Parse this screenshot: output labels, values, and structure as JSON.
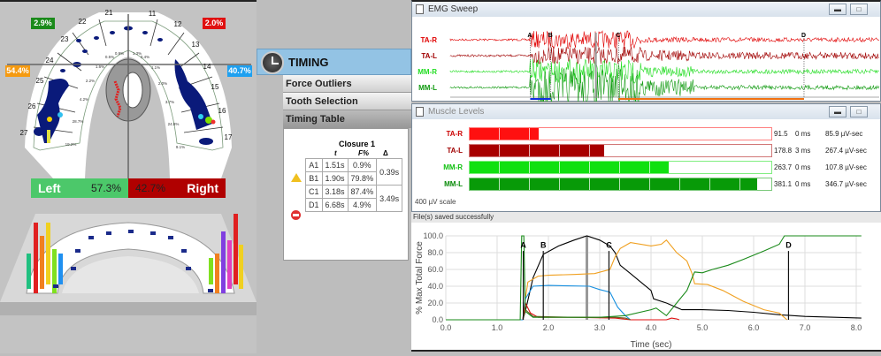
{
  "occlusion": {
    "quadrants": [
      {
        "value": "2.9%",
        "color": "#1a8a1a"
      },
      {
        "value": "2.0%",
        "color": "#e01010"
      },
      {
        "value": "54.4%",
        "color": "#f59a10"
      },
      {
        "value": "40.7%",
        "color": "#1ea0f0"
      }
    ],
    "teeth": [
      "21",
      "11",
      "22",
      "12",
      "23",
      "13",
      "24",
      "14",
      "25",
      "15",
      "26",
      "16",
      "27",
      "17"
    ],
    "tooth_percents": [
      "0.9%",
      "0.5%",
      "1.3%",
      "0.4%",
      "1.6%",
      "1.1%",
      "2.2%",
      "2.0%",
      "4.2%",
      "3.7%",
      "28.7%",
      "24.8%",
      "19.2%",
      "9.1%"
    ],
    "left": {
      "label": "Left",
      "value": "57.3%",
      "color": "#4cc86a"
    },
    "right": {
      "label": "Right",
      "value": "42.7%",
      "color": "#b00000"
    }
  },
  "timing": {
    "title": "TIMING",
    "sections": [
      "Force Outliers",
      "Tooth Selection",
      "Timing Table"
    ],
    "table": {
      "title": "Closure 1",
      "headers": [
        "t",
        "F%",
        "Δ"
      ],
      "rows": [
        {
          "id": "A1",
          "t": "1.51s",
          "f": "0.9%"
        },
        {
          "id": "B1",
          "t": "1.90s",
          "f": "79.8%"
        },
        {
          "id": "C1",
          "t": "3.18s",
          "f": "87.4%"
        },
        {
          "id": "D1",
          "t": "6.68s",
          "f": "4.9%"
        }
      ],
      "deltas": [
        "0.39s",
        "3.49s"
      ],
      "icons": [
        "warning-icon",
        "stop-icon"
      ]
    }
  },
  "emg": {
    "title": "EMG Sweep",
    "channels": [
      {
        "name": "TA-R",
        "color": "#e00000"
      },
      {
        "name": "TA-L",
        "color": "#a00000"
      },
      {
        "name": "MM-R",
        "color": "#22dd22"
      },
      {
        "name": "MM-L",
        "color": "#109a10"
      }
    ],
    "markers": [
      "A",
      "B",
      "C",
      "D"
    ]
  },
  "muscle": {
    "title": "Muscle Levels",
    "rows": [
      {
        "name": "TA-R",
        "level": 91.5,
        "level_text": "91.5",
        "delay": "0 ms",
        "integral": "85.9 µV-sec",
        "color": "#ff1010",
        "label_color": "#cc0000"
      },
      {
        "name": "TA-L",
        "level": 178.8,
        "level_text": "178.8",
        "delay": "3 ms",
        "integral": "267.4 µV-sec",
        "color": "#a80000",
        "label_color": "#a00000"
      },
      {
        "name": "MM-R",
        "level": 263.7,
        "level_text": "263.7",
        "delay": "0 ms",
        "integral": "107.8 µV-sec",
        "color": "#10e010",
        "label_color": "#10c010"
      },
      {
        "name": "MM-L",
        "level": 381.1,
        "level_text": "381.1",
        "delay": "0 ms",
        "integral": "346.7 µV-sec",
        "color": "#089a08",
        "label_color": "#088a08"
      }
    ],
    "scale_max": 400,
    "scale": "400 µV scale"
  },
  "status": "File(s) saved successfully",
  "chart_data": {
    "type": "line",
    "xlabel": "Time (sec)",
    "ylabel": "% Max Total Force",
    "xlim": [
      0,
      8.1
    ],
    "ylim": [
      0,
      100
    ],
    "xticks": [
      "0.0",
      "1.0",
      "2.0",
      "3.0",
      "4.0",
      "5.0",
      "6.0",
      "7.0",
      "8.0"
    ],
    "yticks": [
      "0.0",
      "20.0",
      "40.0",
      "60.0",
      "80.0",
      "100.0"
    ],
    "grid": true,
    "markers": [
      {
        "label": "A",
        "x": 1.51
      },
      {
        "label": "B",
        "x": 1.9
      },
      {
        "label": "C",
        "x": 3.18
      },
      {
        "label": "D",
        "x": 6.68
      }
    ],
    "cursor_x": 2.75,
    "series": [
      {
        "color": "#000000",
        "points": [
          [
            0,
            0
          ],
          [
            1.5,
            0
          ],
          [
            1.55,
            10
          ],
          [
            1.7,
            50
          ],
          [
            1.9,
            78
          ],
          [
            2.2,
            88
          ],
          [
            2.5,
            95
          ],
          [
            2.75,
            100
          ],
          [
            3.0,
            95
          ],
          [
            3.2,
            88
          ],
          [
            3.3,
            80
          ],
          [
            3.4,
            65
          ],
          [
            3.6,
            55
          ],
          [
            3.8,
            45
          ],
          [
            4.0,
            35
          ],
          [
            4.05,
            25
          ],
          [
            4.3,
            20
          ],
          [
            4.6,
            12
          ],
          [
            5.0,
            12
          ],
          [
            5.5,
            11
          ],
          [
            6.0,
            9
          ],
          [
            6.5,
            6
          ],
          [
            7.0,
            4
          ],
          [
            8.1,
            2
          ]
        ]
      },
      {
        "color": "#f0a020",
        "points": [
          [
            0,
            0
          ],
          [
            1.5,
            0
          ],
          [
            1.55,
            25
          ],
          [
            1.6,
            45
          ],
          [
            1.8,
            52
          ],
          [
            2.0,
            53
          ],
          [
            2.5,
            54
          ],
          [
            2.9,
            55
          ],
          [
            3.2,
            60
          ],
          [
            3.3,
            75
          ],
          [
            3.4,
            85
          ],
          [
            3.6,
            92
          ],
          [
            4.0,
            88
          ],
          [
            4.2,
            90
          ],
          [
            4.3,
            95
          ],
          [
            4.5,
            80
          ],
          [
            4.7,
            70
          ],
          [
            4.8,
            55
          ],
          [
            4.85,
            43
          ],
          [
            5.1,
            42
          ],
          [
            5.4,
            35
          ],
          [
            5.8,
            22
          ],
          [
            6.2,
            12
          ],
          [
            6.5,
            8
          ],
          [
            6.65,
            0
          ]
        ]
      },
      {
        "color": "#1890e0",
        "points": [
          [
            0,
            0
          ],
          [
            1.5,
            0
          ],
          [
            1.55,
            25
          ],
          [
            1.7,
            40
          ],
          [
            2.0,
            41
          ],
          [
            2.8,
            40
          ],
          [
            3.0,
            36
          ],
          [
            3.2,
            33
          ],
          [
            3.35,
            15
          ],
          [
            3.5,
            5
          ],
          [
            3.6,
            0
          ]
        ]
      },
      {
        "color": "#e01010",
        "points": [
          [
            1.5,
            0
          ],
          [
            1.55,
            20
          ],
          [
            1.65,
            8
          ],
          [
            1.8,
            3
          ],
          [
            2.5,
            3
          ],
          [
            3.3,
            2
          ],
          [
            3.6,
            0
          ],
          [
            4.3,
            0
          ],
          [
            4.4,
            2
          ],
          [
            4.5,
            1
          ],
          [
            4.55,
            0
          ]
        ]
      },
      {
        "color": "#6b5a20",
        "points": [
          [
            1.5,
            0
          ],
          [
            1.55,
            12
          ],
          [
            1.7,
            4
          ],
          [
            2.5,
            3
          ],
          [
            3.3,
            3
          ],
          [
            3.5,
            2
          ],
          [
            3.6,
            0
          ]
        ]
      },
      {
        "color": "#1a8a1a",
        "points": [
          [
            0,
            0
          ],
          [
            1.45,
            0
          ],
          [
            1.48,
            100
          ],
          [
            1.52,
            100
          ],
          [
            1.55,
            10
          ],
          [
            1.7,
            3
          ],
          [
            3.0,
            3
          ],
          [
            3.5,
            5
          ],
          [
            4.0,
            12
          ],
          [
            4.1,
            14
          ],
          [
            4.3,
            5
          ],
          [
            4.5,
            20
          ],
          [
            4.7,
            35
          ],
          [
            4.8,
            50
          ],
          [
            4.85,
            57
          ],
          [
            5.0,
            56
          ],
          [
            5.2,
            60
          ],
          [
            5.5,
            65
          ],
          [
            5.8,
            72
          ],
          [
            6.2,
            82
          ],
          [
            6.5,
            90
          ],
          [
            6.6,
            100
          ],
          [
            8.1,
            100
          ]
        ]
      }
    ]
  }
}
